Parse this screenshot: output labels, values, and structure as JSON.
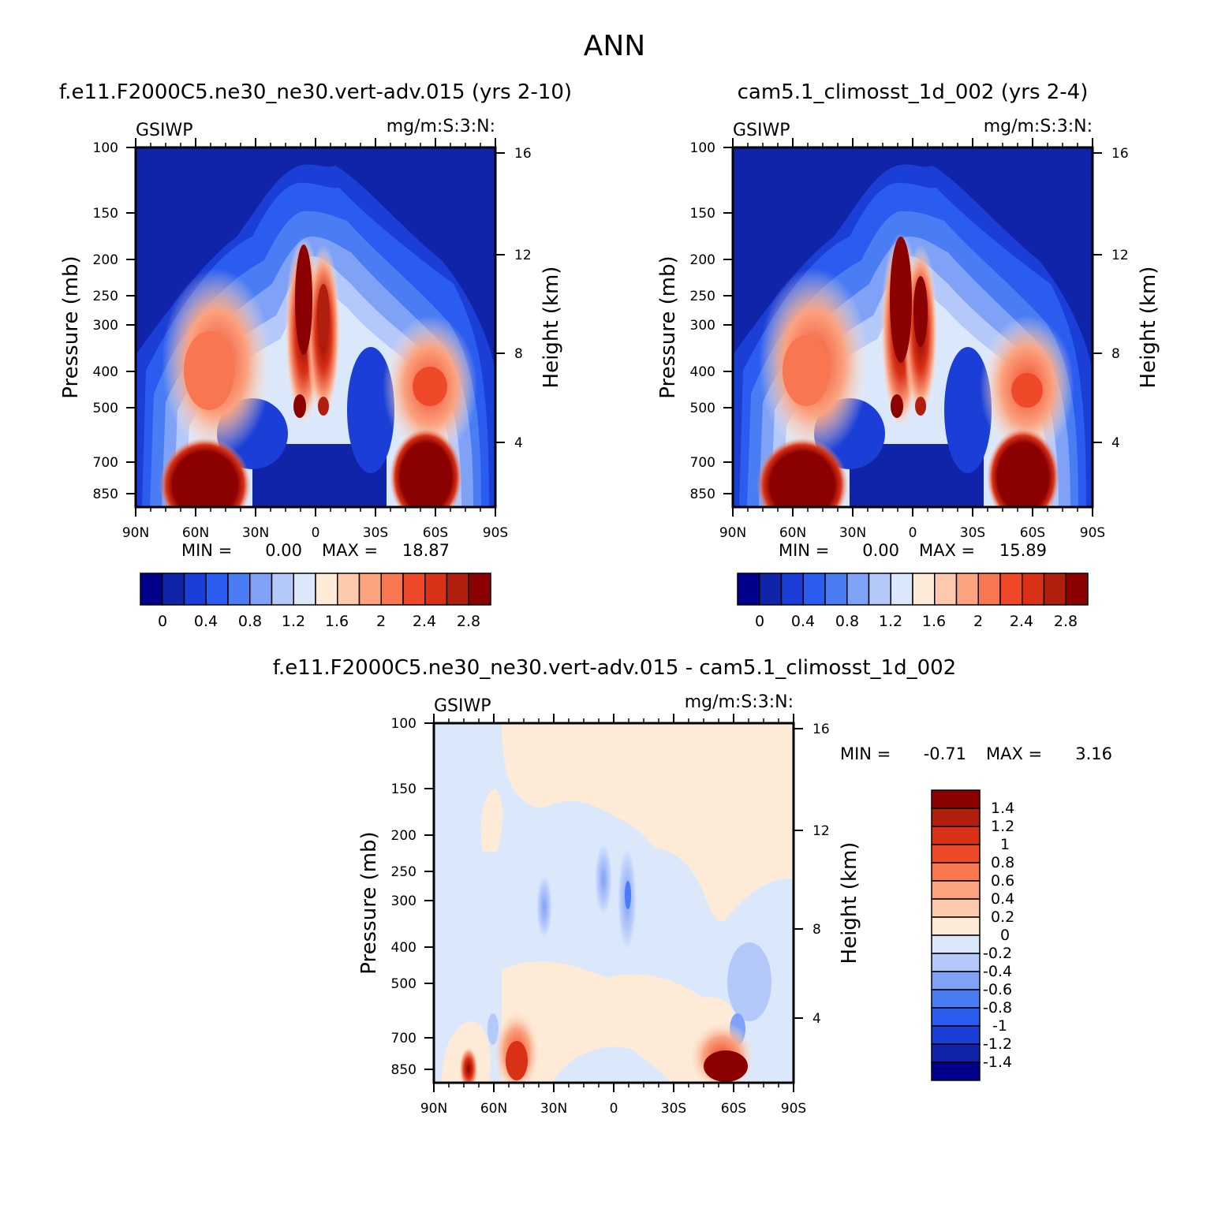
{
  "figure": {
    "title": "ANN"
  },
  "chart_data": [
    {
      "type": "heatmap",
      "title": "f.e11.F2000C5.ne30_ne30.vert-adv.015 (yrs 2-10)",
      "left_label": "GSIWP",
      "units": "mg/m:S:3:N:",
      "ylabel": "Pressure (mb)",
      "ylabel_right": "Height (km)",
      "x_ticks": [
        "90N",
        "60N",
        "30N",
        "0",
        "30S",
        "60S",
        "90S"
      ],
      "y_ticks": [
        "100",
        "150",
        "200",
        "250",
        "300",
        "400",
        "500",
        "700",
        "850"
      ],
      "y_ticks_right": [
        "16",
        "12",
        "8",
        "4"
      ],
      "ylim": [
        1000,
        100
      ],
      "y_scale": "log (pressure)",
      "stats": {
        "min_label": "MIN =",
        "min": "0.00",
        "max_label": "MAX =",
        "max": "18.87"
      },
      "colorbar": {
        "orientation": "horizontal",
        "tick_labels": [
          "0",
          "0.4",
          "0.8",
          "1.2",
          "1.6",
          "2",
          "2.4",
          "2.8"
        ],
        "colors": [
          "#00008b",
          "#0f24a8",
          "#1a3ed6",
          "#2a5cf0",
          "#4a7cf4",
          "#7fa2f7",
          "#b4c8fa",
          "#dbe8fc",
          "#fdebd8",
          "#fcc9ad",
          "#fba27f",
          "#f87650",
          "#f0492a",
          "#d83116",
          "#b01e0d",
          "#8b0000"
        ]
      }
    },
    {
      "type": "heatmap",
      "title": "cam5.1_climosst_1d_002 (yrs 2-4)",
      "left_label": "GSIWP",
      "units": "mg/m:S:3:N:",
      "ylabel": "Pressure (mb)",
      "ylabel_right": "Height (km)",
      "x_ticks": [
        "90N",
        "60N",
        "30N",
        "0",
        "30S",
        "60S",
        "90S"
      ],
      "y_ticks": [
        "100",
        "150",
        "200",
        "250",
        "300",
        "400",
        "500",
        "700",
        "850"
      ],
      "y_ticks_right": [
        "16",
        "12",
        "8",
        "4"
      ],
      "ylim": [
        1000,
        100
      ],
      "y_scale": "log (pressure)",
      "stats": {
        "min_label": "MIN =",
        "min": "0.00",
        "max_label": "MAX =",
        "max": "15.89"
      },
      "colorbar": {
        "orientation": "horizontal",
        "tick_labels": [
          "0",
          "0.4",
          "0.8",
          "1.2",
          "1.6",
          "2",
          "2.4",
          "2.8"
        ],
        "colors": [
          "#00008b",
          "#0f24a8",
          "#1a3ed6",
          "#2a5cf0",
          "#4a7cf4",
          "#7fa2f7",
          "#b4c8fa",
          "#dbe8fc",
          "#fdebd8",
          "#fcc9ad",
          "#fba27f",
          "#f87650",
          "#f0492a",
          "#d83116",
          "#b01e0d",
          "#8b0000"
        ]
      }
    },
    {
      "type": "heatmap",
      "title": "f.e11.F2000C5.ne30_ne30.vert-adv.015 - cam5.1_climosst_1d_002",
      "left_label": "GSIWP",
      "units": "mg/m:S:3:N:",
      "ylabel": "Pressure (mb)",
      "ylabel_right": "Height (km)",
      "x_ticks": [
        "90N",
        "60N",
        "30N",
        "0",
        "30S",
        "60S",
        "90S"
      ],
      "y_ticks": [
        "100",
        "150",
        "200",
        "250",
        "300",
        "400",
        "500",
        "700",
        "850"
      ],
      "y_ticks_right": [
        "16",
        "12",
        "8",
        "4"
      ],
      "ylim": [
        1000,
        100
      ],
      "y_scale": "log (pressure)",
      "stats": {
        "min_label": "MIN =",
        "min": "-0.71",
        "max_label": "MAX =",
        "max": "3.16"
      },
      "colorbar": {
        "orientation": "vertical",
        "tick_labels": [
          "1.4",
          "1.2",
          "1",
          "0.8",
          "0.6",
          "0.4",
          "0.2",
          "0",
          "-0.2",
          "-0.4",
          "-0.6",
          "-0.8",
          "-1",
          "-1.2",
          "-1.4"
        ],
        "colors": [
          "#8b0000",
          "#b01e0d",
          "#d83116",
          "#f0492a",
          "#f87650",
          "#fba27f",
          "#fcc9ad",
          "#fdebd8",
          "#dbe8fc",
          "#b4c8fa",
          "#7fa2f7",
          "#4a7cf4",
          "#2a5cf0",
          "#1a3ed6",
          "#0f24a8",
          "#00008b"
        ]
      }
    }
  ]
}
